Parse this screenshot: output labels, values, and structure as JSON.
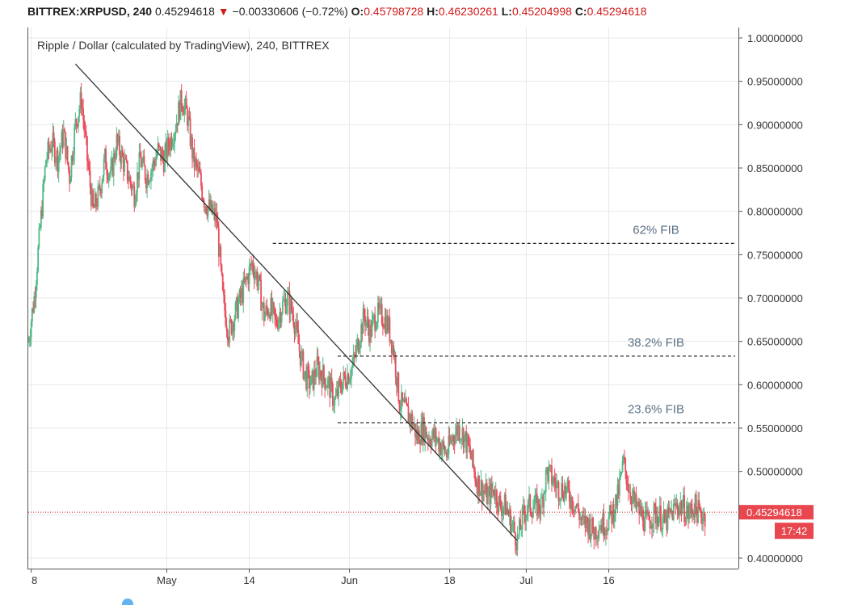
{
  "header": {
    "symbol": "BITTREX:XRPUSD, 240",
    "last": "0.45294618",
    "arrow": "▼",
    "change": "−0.00330606 (−0.72%)",
    "o_label": "O:",
    "o_value": "0.45798728",
    "h_label": "H:",
    "h_value": "0.46230261",
    "l_label": "L:",
    "l_value": "0.45204998",
    "c_label": "C:",
    "c_value": "0.45294618"
  },
  "chart_data": {
    "type": "candlestick",
    "title": "Ripple / Dollar (calculated by TradingView), 240, BITTREX",
    "ylim": [
      0.39,
      1.01
    ],
    "y_ticks": [
      "1.00000000",
      "0.95000000",
      "0.90000000",
      "0.85000000",
      "0.80000000",
      "0.75000000",
      "0.70000000",
      "0.65000000",
      "0.60000000",
      "0.55000000",
      "0.50000000",
      "0.45000000",
      "0.40000000"
    ],
    "y_tick_values": [
      1.0,
      0.95,
      0.9,
      0.85,
      0.8,
      0.75,
      0.7,
      0.65,
      0.6,
      0.55,
      0.5,
      0.45,
      0.4
    ],
    "x_ticks": [
      "8",
      "May",
      "14",
      "Jun",
      "18",
      "Jul",
      "16"
    ],
    "x_tick_days": [
      8,
      31,
      45,
      62,
      79,
      92,
      106
    ],
    "x_range_days": [
      7.5,
      128
    ],
    "grid": true,
    "price_path": [
      [
        7.5,
        0.65
      ],
      [
        8.5,
        0.7
      ],
      [
        9.5,
        0.78
      ],
      [
        10.5,
        0.86
      ],
      [
        11.5,
        0.88
      ],
      [
        12.5,
        0.86
      ],
      [
        13.5,
        0.89
      ],
      [
        14.5,
        0.84
      ],
      [
        15.5,
        0.9
      ],
      [
        16.5,
        0.93
      ],
      [
        17.5,
        0.86
      ],
      [
        18.5,
        0.8
      ],
      [
        19.5,
        0.82
      ],
      [
        20.5,
        0.86
      ],
      [
        21.5,
        0.84
      ],
      [
        22.5,
        0.88
      ],
      [
        23.5,
        0.86
      ],
      [
        24.5,
        0.84
      ],
      [
        25.5,
        0.82
      ],
      [
        26.5,
        0.86
      ],
      [
        27.5,
        0.84
      ],
      [
        28.5,
        0.85
      ],
      [
        29.5,
        0.87
      ],
      [
        30.5,
        0.86
      ],
      [
        31.5,
        0.88
      ],
      [
        32.5,
        0.9
      ],
      [
        33.5,
        0.93
      ],
      [
        34.5,
        0.91
      ],
      [
        35.5,
        0.86
      ],
      [
        36.5,
        0.84
      ],
      [
        37.5,
        0.81
      ],
      [
        38.5,
        0.8
      ],
      [
        39.5,
        0.79
      ],
      [
        40.5,
        0.7
      ],
      [
        41.5,
        0.66
      ],
      [
        42.5,
        0.68
      ],
      [
        43.5,
        0.7
      ],
      [
        44.5,
        0.72
      ],
      [
        45.5,
        0.74
      ],
      [
        46.5,
        0.72
      ],
      [
        47.5,
        0.68
      ],
      [
        48.5,
        0.69
      ],
      [
        49.5,
        0.67
      ],
      [
        50.5,
        0.69
      ],
      [
        51.5,
        0.7
      ],
      [
        52.5,
        0.68
      ],
      [
        53.5,
        0.64
      ],
      [
        54.5,
        0.61
      ],
      [
        55.5,
        0.6
      ],
      [
        56.5,
        0.62
      ],
      [
        57.5,
        0.61
      ],
      [
        58.5,
        0.6
      ],
      [
        59.5,
        0.58
      ],
      [
        60.5,
        0.6
      ],
      [
        61.5,
        0.61
      ],
      [
        62.5,
        0.62
      ],
      [
        63.5,
        0.65
      ],
      [
        64.5,
        0.68
      ],
      [
        65.5,
        0.66
      ],
      [
        66.5,
        0.68
      ],
      [
        67.5,
        0.68
      ],
      [
        68.5,
        0.67
      ],
      [
        69.5,
        0.64
      ],
      [
        70.5,
        0.58
      ],
      [
        71.5,
        0.57
      ],
      [
        72.5,
        0.56
      ],
      [
        73.5,
        0.54
      ],
      [
        74.5,
        0.55
      ],
      [
        75.5,
        0.54
      ],
      [
        76.5,
        0.54
      ],
      [
        77.5,
        0.53
      ],
      [
        78.5,
        0.52
      ],
      [
        79.5,
        0.54
      ],
      [
        80.5,
        0.55
      ],
      [
        81.5,
        0.54
      ],
      [
        82.5,
        0.52
      ],
      [
        83.5,
        0.49
      ],
      [
        84.5,
        0.48
      ],
      [
        85.5,
        0.47
      ],
      [
        86.5,
        0.48
      ],
      [
        87.5,
        0.46
      ],
      [
        88.5,
        0.46
      ],
      [
        89.5,
        0.44
      ],
      [
        90.5,
        0.42
      ],
      [
        91.5,
        0.45
      ],
      [
        92.5,
        0.46
      ],
      [
        93.5,
        0.46
      ],
      [
        94.5,
        0.46
      ],
      [
        95.5,
        0.5
      ],
      [
        96.5,
        0.49
      ],
      [
        97.5,
        0.48
      ],
      [
        98.5,
        0.48
      ],
      [
        99.5,
        0.47
      ],
      [
        100.5,
        0.46
      ],
      [
        101.5,
        0.44
      ],
      [
        102.5,
        0.44
      ],
      [
        103.5,
        0.43
      ],
      [
        104.5,
        0.44
      ],
      [
        105.5,
        0.44
      ],
      [
        106.5,
        0.45
      ],
      [
        107.5,
        0.47
      ],
      [
        108.5,
        0.51
      ],
      [
        109.5,
        0.48
      ],
      [
        110.5,
        0.46
      ],
      [
        111.5,
        0.45
      ],
      [
        112.5,
        0.44
      ],
      [
        113.5,
        0.45
      ],
      [
        114.5,
        0.45
      ],
      [
        115.5,
        0.44
      ],
      [
        116.5,
        0.45
      ],
      [
        117.5,
        0.46
      ],
      [
        118.5,
        0.46
      ],
      [
        119.5,
        0.45
      ],
      [
        120.5,
        0.46
      ],
      [
        121.5,
        0.45
      ],
      [
        122.5,
        0.45
      ]
    ],
    "trendline": {
      "from": [
        15.5,
        0.97
      ],
      "to": [
        90.5,
        0.42
      ]
    },
    "levels": [
      {
        "label": "62% FIB",
        "value": 0.763,
        "from_day": 49
      },
      {
        "label": "38.2% FIB",
        "value": 0.633,
        "from_day": 60
      },
      {
        "label": "23.6% FIB",
        "value": 0.556,
        "from_day": 60
      }
    ],
    "current_price": {
      "value": 0.45294618,
      "label": "0.45294618",
      "timer": "17:42"
    }
  },
  "colors": {
    "up": "#53b987",
    "down": "#eb4d5c",
    "grid": "#e6e9ee",
    "axis": "#555555",
    "level_text": "#5b7085",
    "price_line": "#d11a1a",
    "trend": "#333333",
    "badge": "#e8474f"
  },
  "bottom": {
    "link_icon": "tradingview-logo-icon"
  }
}
